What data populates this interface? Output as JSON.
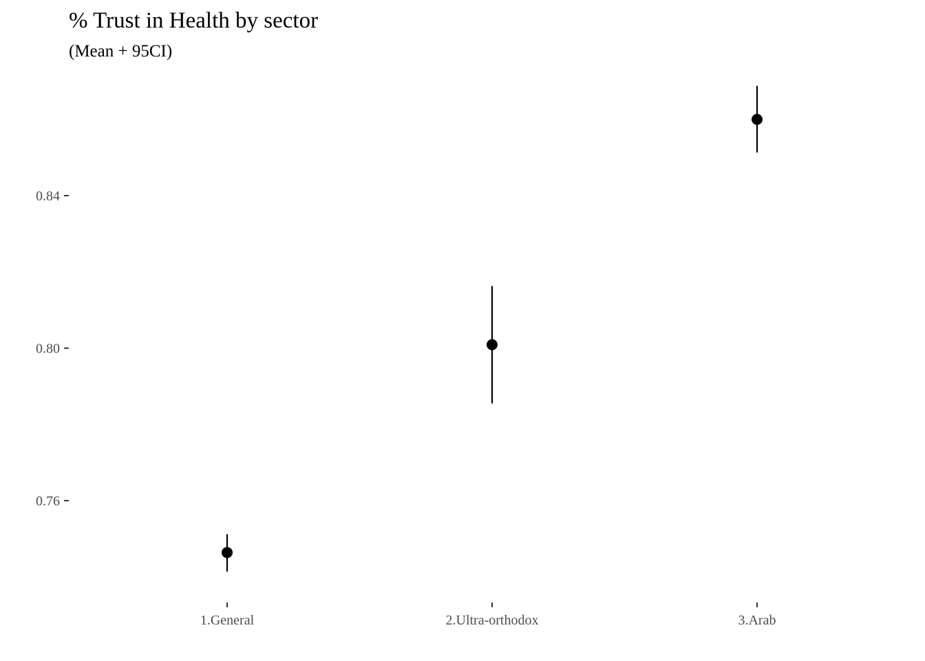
{
  "chart_data": {
    "type": "scatter",
    "title": "% Trust in Health by sector",
    "subtitle": "(Mean + 95CI)",
    "xlabel": "",
    "ylabel": "",
    "categories": [
      "1.General",
      "2.Ultra-orthodox",
      "3.Arab"
    ],
    "series": [
      {
        "mean": [
          0.7464,
          0.8009,
          0.86
        ],
        "ci_low": [
          0.7414,
          0.7855,
          0.8513
        ],
        "ci_high": [
          0.7512,
          0.8163,
          0.8688
        ]
      }
    ],
    "y_ticks": [
      0.76,
      0.8,
      0.84
    ],
    "y_tick_labels": [
      "0.76",
      "0.80",
      "0.84"
    ],
    "ylim": [
      0.7342,
      0.8718
    ],
    "grid": false,
    "legend": "none",
    "colors": {
      "point": "#000000",
      "errorbar": "#000000",
      "tick_label": "#4d4d4d",
      "axis_tick": "#333333"
    }
  }
}
